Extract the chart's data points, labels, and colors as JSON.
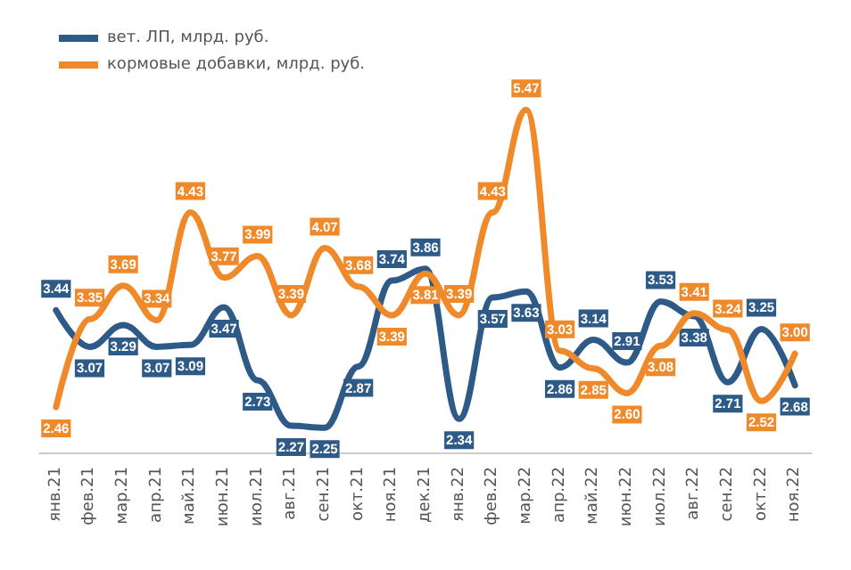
{
  "chart_data": {
    "type": "line",
    "categories": [
      "янв.21",
      "фев.21",
      "мар.21",
      "апр.21",
      "май.21",
      "июн.21",
      "июл.21",
      "авг.21",
      "сен.21",
      "окт.21",
      "ноя.21",
      "дек.21",
      "янв.22",
      "фев.22",
      "мар.22",
      "апр.22",
      "май.22",
      "июн.22",
      "июл.22",
      "авг.22",
      "сен.22",
      "окт.22",
      "ноя.22"
    ],
    "series": [
      {
        "name": "вет. ЛП, млрд. руб.",
        "color": "#2e5a87",
        "values": [
          3.44,
          3.07,
          3.29,
          3.07,
          3.09,
          3.47,
          2.73,
          2.27,
          2.25,
          2.87,
          3.74,
          3.86,
          2.34,
          3.57,
          3.63,
          2.86,
          3.14,
          2.91,
          3.53,
          3.38,
          2.71,
          3.25,
          2.68
        ],
        "value_labels": [
          "3.44",
          "3.07",
          "3.29",
          "3.07",
          "3.09",
          "3.47",
          "2.73",
          "2.27",
          "2.25",
          "2.87",
          "3.74",
          "3.86",
          "2.34",
          "3.57",
          "3.63",
          "2.86",
          "3.14",
          "2.91",
          "3.53",
          "3.38",
          "2.71",
          "3.25",
          "2.68"
        ]
      },
      {
        "name": "кормовые добавки, млрд. руб.",
        "color": "#f0892a",
        "values": [
          2.46,
          3.35,
          3.69,
          3.34,
          4.43,
          3.77,
          3.99,
          3.39,
          4.07,
          3.68,
          3.39,
          3.81,
          3.39,
          4.43,
          5.47,
          3.03,
          2.85,
          2.6,
          3.08,
          3.41,
          3.24,
          2.52,
          3.0
        ],
        "value_labels": [
          "2.46",
          "3.35",
          "3.69",
          "3.34",
          "4.43",
          "3.77",
          "3.99",
          "3.39",
          "4.07",
          "3.68",
          "3.39",
          "3.81",
          "3.39",
          "4.43",
          "5.47",
          "3.03",
          "2.85",
          "2.60",
          "3.08",
          "3.41",
          "3.24",
          "2.52",
          "3.00"
        ]
      }
    ],
    "legend": "top left",
    "grid": false,
    "marker": "none",
    "line_style": "solid"
  }
}
